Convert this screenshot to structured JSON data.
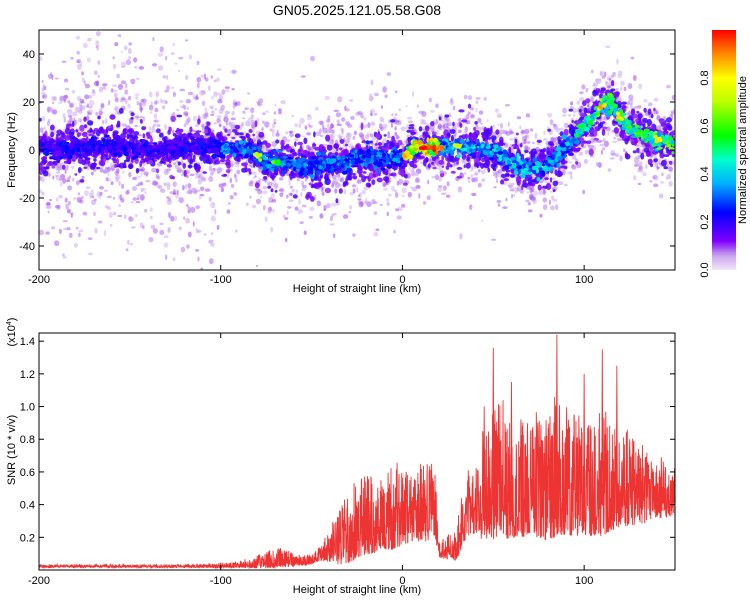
{
  "title": "GN05.2025.121.05.58.G08",
  "chart_data": [
    {
      "type": "heatmap",
      "xlabel": "Height of straight line (km)",
      "ylabel": "Frequency (Hz)",
      "xlim": [
        -200,
        150
      ],
      "ylim": [
        -50,
        50
      ],
      "x_ticks": [
        -200,
        -100,
        0,
        100
      ],
      "x_tick_labels": [
        "-200",
        "-100",
        "0",
        "100"
      ],
      "y_ticks": [
        -40,
        -20,
        0,
        20,
        40
      ],
      "y_tick_labels": [
        "-40",
        "-20",
        "0",
        "20",
        "40"
      ],
      "ridge": {
        "x": [
          -200,
          -180,
          -160,
          -140,
          -120,
          -100,
          -90,
          -80,
          -75,
          -70,
          -60,
          -50,
          -40,
          -30,
          -20,
          -10,
          0,
          5,
          10,
          20,
          30,
          40,
          50,
          60,
          70,
          78,
          85,
          90,
          100,
          110,
          115,
          120,
          130,
          140,
          150
        ],
        "y": [
          0,
          1,
          2,
          0,
          1,
          1,
          1,
          -2,
          -6,
          -5,
          -6,
          -7,
          -6,
          -4,
          -3,
          -3,
          -3,
          1,
          1,
          1,
          2,
          1,
          -1,
          -5,
          -8,
          -8,
          -3,
          1,
          10,
          18,
          20,
          13,
          7,
          4,
          3
        ]
      },
      "colorbar": {
        "label": "Normalized spectral amplitude",
        "range": [
          0,
          1
        ],
        "ticks": [
          0.0,
          0.2,
          0.4,
          0.6,
          0.8
        ],
        "tick_labels": [
          "0.0",
          "0.2",
          "0.4",
          "0.6",
          "0.8"
        ]
      },
      "grid": false
    },
    {
      "type": "line",
      "xlabel": "Height of straight line (km)",
      "ylabel": "SNR (10 * v/v)",
      "scale_label": "(x10^4)",
      "scale_base": "(x10",
      "scale_exp": "4",
      "xlim": [
        -200,
        150
      ],
      "ylim": [
        0,
        1.45
      ],
      "x_ticks": [
        -200,
        -100,
        0,
        100
      ],
      "x_tick_labels": [
        "-200",
        "-100",
        "0",
        "100"
      ],
      "y_ticks": [
        0.2,
        0.4,
        0.6,
        0.8,
        1.0,
        1.2,
        1.4
      ],
      "y_tick_labels": [
        "0.2",
        "0.4",
        "0.6",
        "0.8",
        "1.0",
        "1.2",
        "1.4"
      ],
      "series": [
        {
          "color": "#ee3333",
          "envelope": {
            "x": [
              -200,
              -150,
              -120,
              -100,
              -90,
              -80,
              -70,
              -65,
              -60,
              -50,
              -45,
              -40,
              -35,
              -30,
              -25,
              -20,
              -15,
              -10,
              -5,
              0,
              5,
              10,
              15,
              18,
              20,
              25,
              30,
              35,
              40,
              45,
              50,
              55,
              60,
              65,
              70,
              75,
              80,
              85,
              90,
              95,
              100,
              105,
              110,
              115,
              120,
              125,
              130,
              135,
              140,
              145,
              150
            ],
            "base": [
              0.02,
              0.02,
              0.02,
              0.02,
              0.025,
              0.03,
              0.04,
              0.05,
              0.04,
              0.05,
              0.08,
              0.1,
              0.12,
              0.15,
              0.2,
              0.22,
              0.24,
              0.25,
              0.26,
              0.28,
              0.28,
              0.3,
              0.3,
              0.32,
              0.1,
              0.1,
              0.12,
              0.3,
              0.35,
              0.35,
              0.4,
              0.4,
              0.38,
              0.38,
              0.4,
              0.4,
              0.4,
              0.42,
              0.42,
              0.4,
              0.4,
              0.38,
              0.4,
              0.42,
              0.4,
              0.42,
              0.4,
              0.42,
              0.42,
              0.4,
              0.42
            ],
            "amp": [
              0.02,
              0.02,
              0.02,
              0.03,
              0.04,
              0.08,
              0.12,
              0.14,
              0.08,
              0.06,
              0.1,
              0.2,
              0.35,
              0.45,
              0.5,
              0.5,
              0.55,
              0.5,
              0.55,
              0.5,
              0.45,
              0.5,
              0.5,
              0.45,
              0.1,
              0.15,
              0.25,
              0.4,
              0.5,
              0.7,
              0.85,
              0.9,
              0.7,
              0.75,
              0.7,
              0.8,
              0.9,
              0.85,
              0.8,
              0.8,
              0.75,
              0.7,
              0.8,
              0.7,
              0.6,
              0.6,
              0.5,
              0.5,
              0.4,
              0.35,
              0.3
            ]
          },
          "peaks": [
            {
              "x": 50,
              "y": 1.36
            },
            {
              "x": 85,
              "y": 1.44
            },
            {
              "x": 110,
              "y": 1.35
            },
            {
              "x": 45,
              "y": 1.0
            },
            {
              "x": 100,
              "y": 1.2
            },
            {
              "x": 118,
              "y": 1.25
            },
            {
              "x": 60,
              "y": 1.15
            }
          ]
        }
      ],
      "grid": false
    }
  ]
}
